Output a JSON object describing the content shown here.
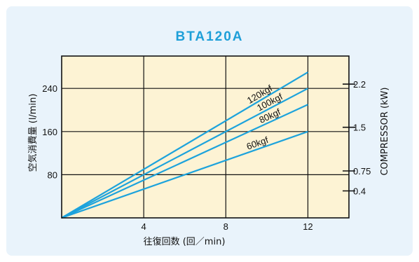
{
  "chart_data": {
    "type": "line",
    "title": "BTA120A",
    "xlabel": "往復回数 (回／min)",
    "ylabel": "空気消費量 (l/min)",
    "y2label": "COMPRESSOR (kW)",
    "xlim": [
      0,
      14
    ],
    "ylim": [
      0,
      300
    ],
    "x_ticks": [
      "4",
      "8",
      "12"
    ],
    "x_tick_values": [
      4,
      8,
      12
    ],
    "y_ticks": [
      "80",
      "160",
      "240"
    ],
    "y_tick_values": [
      80,
      160,
      240
    ],
    "y2_ticks": [
      "0.4",
      "0.75",
      "1.5",
      "2.2"
    ],
    "y2_tick_values": [
      50,
      87,
      168,
      248
    ],
    "grid": true,
    "series": [
      {
        "name": "120kgf",
        "x": [
          0,
          12
        ],
        "y": [
          0,
          270
        ]
      },
      {
        "name": "100kgf",
        "x": [
          0,
          12
        ],
        "y": [
          0,
          240
        ]
      },
      {
        "name": "80kgf",
        "x": [
          0,
          12
        ],
        "y": [
          0,
          210
        ]
      },
      {
        "name": "60kgf",
        "x": [
          0,
          12
        ],
        "y": [
          0,
          160
        ]
      }
    ],
    "colors": {
      "line": "#1da3dc",
      "plot_bg": "#fdf3d4",
      "title": "#1e9fd8"
    }
  }
}
